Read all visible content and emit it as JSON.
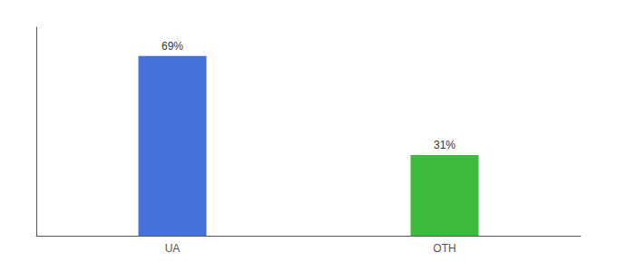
{
  "chart_data": {
    "type": "bar",
    "categories": [
      "UA",
      "OTH"
    ],
    "values": [
      69,
      31
    ],
    "value_labels": [
      "69%",
      "31%"
    ],
    "colors": [
      "#4472db",
      "#3dbb3d"
    ],
    "ylim": [
      0,
      80
    ],
    "yticks": [],
    "tick_labels": "x",
    "grid": false,
    "data_labels": true
  }
}
